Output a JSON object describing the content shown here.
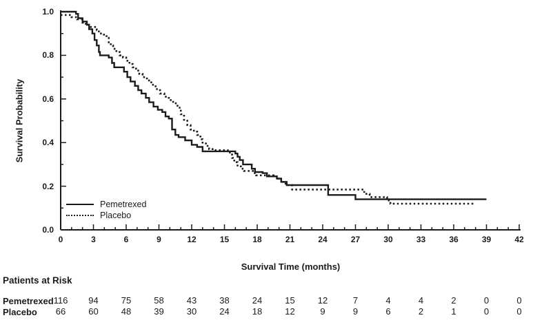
{
  "chart_data": {
    "type": "line",
    "subtype": "kaplan-meier-step",
    "title": "",
    "xlabel": "Survival Time (months)",
    "ylabel": "Survival Probability",
    "xlim": [
      0,
      42
    ],
    "ylim": [
      0.0,
      1.0
    ],
    "xticks": [
      0,
      3,
      6,
      9,
      12,
      15,
      18,
      21,
      24,
      27,
      30,
      33,
      36,
      39,
      42
    ],
    "yticks": [
      0.0,
      0.2,
      0.4,
      0.6,
      0.8,
      1.0
    ],
    "x_minor_tick_every": 1,
    "y_minor_tick_every": 0.1,
    "grid": "off",
    "legend_position": "lower-left-inside",
    "line_color": "#1b1b1b",
    "series": [
      {
        "name": "Pemetrexed",
        "style": "solid",
        "points": [
          [
            0,
            1.0
          ],
          [
            1.4,
            0.99
          ],
          [
            1.6,
            0.97
          ],
          [
            2.0,
            0.955
          ],
          [
            2.4,
            0.94
          ],
          [
            2.6,
            0.92
          ],
          [
            2.9,
            0.9
          ],
          [
            3.1,
            0.87
          ],
          [
            3.3,
            0.845
          ],
          [
            3.5,
            0.815
          ],
          [
            3.6,
            0.8
          ],
          [
            4.4,
            0.79
          ],
          [
            4.7,
            0.765
          ],
          [
            4.9,
            0.745
          ],
          [
            5.8,
            0.725
          ],
          [
            6.1,
            0.7
          ],
          [
            6.4,
            0.68
          ],
          [
            6.8,
            0.66
          ],
          [
            7.1,
            0.64
          ],
          [
            7.4,
            0.625
          ],
          [
            7.8,
            0.605
          ],
          [
            8.1,
            0.585
          ],
          [
            8.5,
            0.565
          ],
          [
            8.9,
            0.55
          ],
          [
            9.3,
            0.54
          ],
          [
            9.6,
            0.52
          ],
          [
            9.9,
            0.51
          ],
          [
            10.2,
            0.46
          ],
          [
            10.5,
            0.435
          ],
          [
            10.8,
            0.425
          ],
          [
            11.4,
            0.41
          ],
          [
            12.0,
            0.39
          ],
          [
            12.5,
            0.38
          ],
          [
            13.0,
            0.36
          ],
          [
            16.0,
            0.35
          ],
          [
            16.2,
            0.335
          ],
          [
            16.4,
            0.32
          ],
          [
            16.7,
            0.3
          ],
          [
            17.5,
            0.28
          ],
          [
            17.8,
            0.265
          ],
          [
            18.5,
            0.26
          ],
          [
            18.9,
            0.245
          ],
          [
            19.8,
            0.235
          ],
          [
            20.2,
            0.22
          ],
          [
            20.7,
            0.205
          ],
          [
            24.5,
            0.16
          ],
          [
            27.0,
            0.14
          ],
          [
            39.0,
            0.14
          ]
        ]
      },
      {
        "name": "Placebo",
        "style": "dotted",
        "points": [
          [
            0,
            0.985
          ],
          [
            1.0,
            0.975
          ],
          [
            1.5,
            0.965
          ],
          [
            2.0,
            0.95
          ],
          [
            2.3,
            0.94
          ],
          [
            2.7,
            0.93
          ],
          [
            3.3,
            0.915
          ],
          [
            3.5,
            0.9
          ],
          [
            3.8,
            0.895
          ],
          [
            4.2,
            0.88
          ],
          [
            4.4,
            0.86
          ],
          [
            4.6,
            0.845
          ],
          [
            4.8,
            0.83
          ],
          [
            5.1,
            0.815
          ],
          [
            5.4,
            0.8
          ],
          [
            5.7,
            0.79
          ],
          [
            6.0,
            0.775
          ],
          [
            6.3,
            0.76
          ],
          [
            6.6,
            0.745
          ],
          [
            6.9,
            0.73
          ],
          [
            7.2,
            0.715
          ],
          [
            7.5,
            0.7
          ],
          [
            7.9,
            0.685
          ],
          [
            8.3,
            0.665
          ],
          [
            8.7,
            0.645
          ],
          [
            9.1,
            0.625
          ],
          [
            9.5,
            0.61
          ],
          [
            9.9,
            0.595
          ],
          [
            10.3,
            0.58
          ],
          [
            10.7,
            0.56
          ],
          [
            11.0,
            0.53
          ],
          [
            11.3,
            0.5
          ],
          [
            11.6,
            0.48
          ],
          [
            11.9,
            0.46
          ],
          [
            12.2,
            0.45
          ],
          [
            12.5,
            0.435
          ],
          [
            12.8,
            0.415
          ],
          [
            13.0,
            0.4
          ],
          [
            13.3,
            0.385
          ],
          [
            13.6,
            0.37
          ],
          [
            14.0,
            0.365
          ],
          [
            15.3,
            0.355
          ],
          [
            15.5,
            0.345
          ],
          [
            15.7,
            0.33
          ],
          [
            15.9,
            0.31
          ],
          [
            16.2,
            0.295
          ],
          [
            16.5,
            0.28
          ],
          [
            16.8,
            0.27
          ],
          [
            17.6,
            0.26
          ],
          [
            17.9,
            0.25
          ],
          [
            19.5,
            0.245
          ],
          [
            19.8,
            0.235
          ],
          [
            20.2,
            0.22
          ],
          [
            20.6,
            0.205
          ],
          [
            21.2,
            0.185
          ],
          [
            27.8,
            0.165
          ],
          [
            28.3,
            0.15
          ],
          [
            29.9,
            0.135
          ],
          [
            30.2,
            0.12
          ],
          [
            37.9,
            0.12
          ]
        ]
      }
    ]
  },
  "risk_table": {
    "heading": "Patients at Risk",
    "time_points": [
      0,
      3,
      6,
      9,
      12,
      15,
      18,
      21,
      24,
      27,
      30,
      33,
      36,
      39,
      42
    ],
    "rows": [
      {
        "label": "Pemetrexed",
        "values": [
          116,
          94,
          75,
          58,
          43,
          38,
          24,
          15,
          12,
          7,
          4,
          4,
          2,
          0,
          0
        ]
      },
      {
        "label": "Placebo",
        "values": [
          66,
          60,
          48,
          39,
          30,
          24,
          18,
          12,
          9,
          9,
          6,
          2,
          1,
          0,
          0
        ]
      }
    ]
  },
  "colors": {
    "line": "#1b1b1b",
    "text": "#1b1b1b",
    "background": "#ffffff"
  }
}
